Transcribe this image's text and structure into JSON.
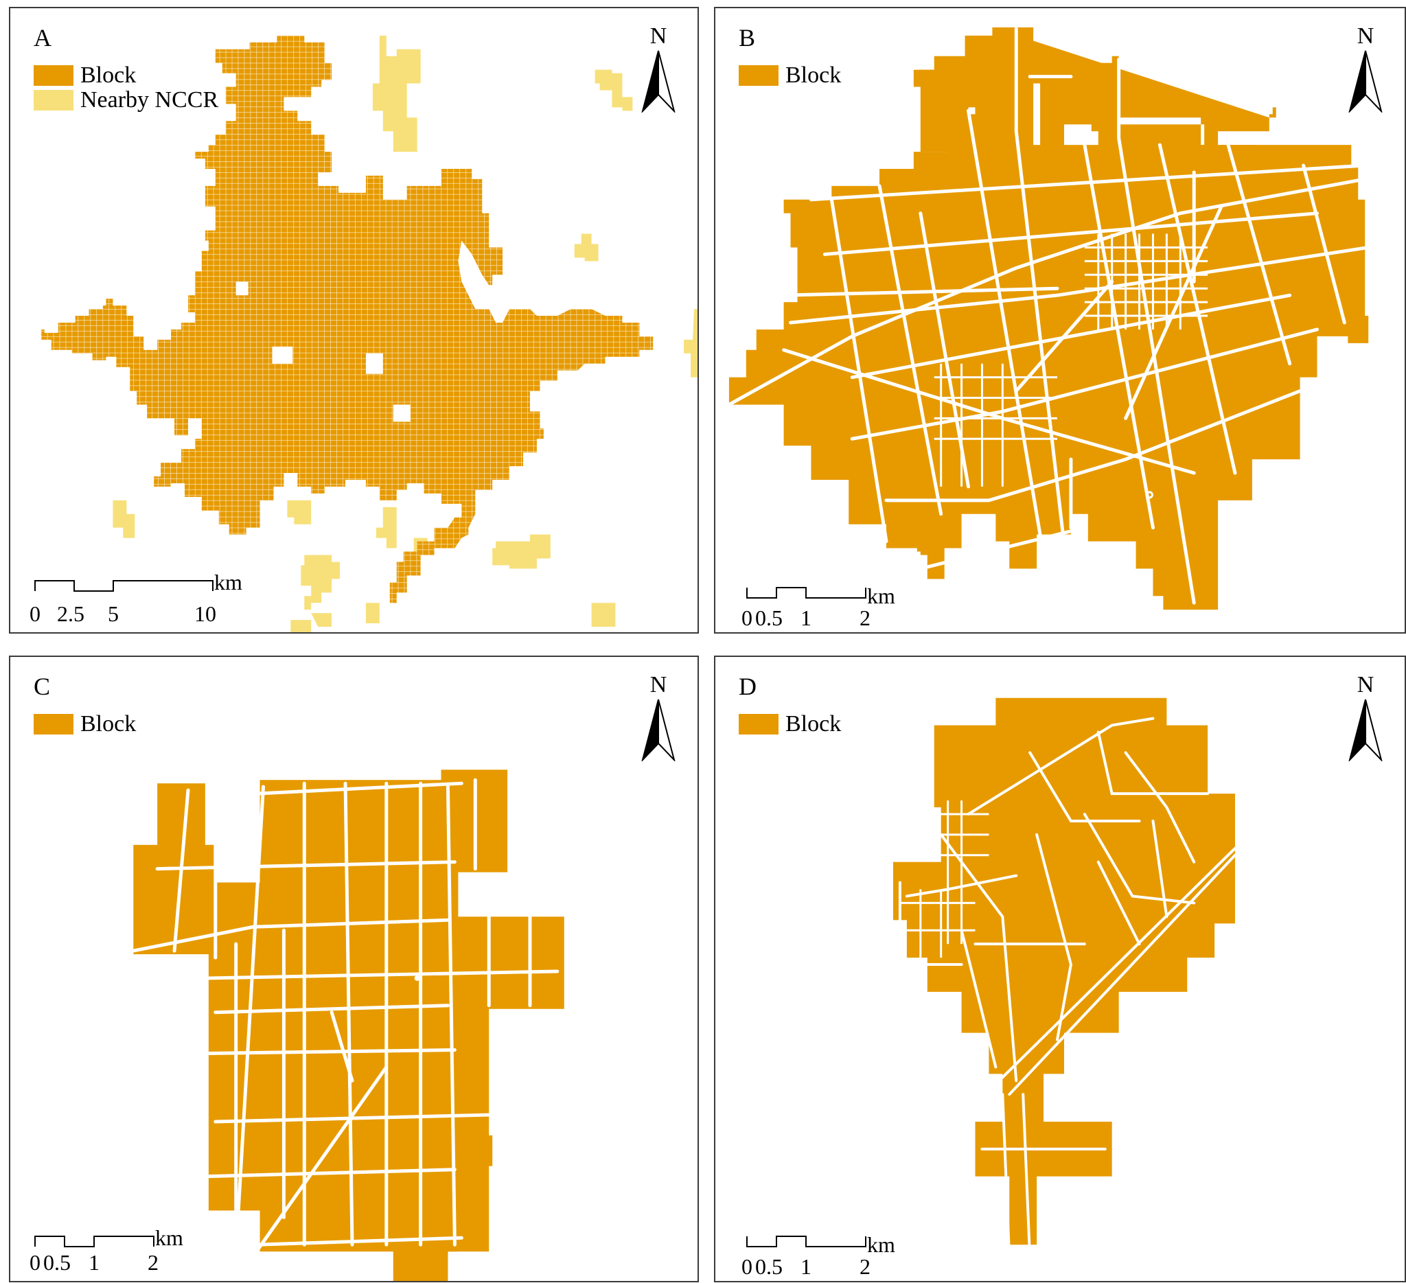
{
  "colors": {
    "block": "#E69A00",
    "nearby_nccr": "#F7E07A",
    "road": "#ffffff",
    "border": "#3a3a3a"
  },
  "panels": [
    {
      "letter": "A",
      "legend": [
        {
          "label": "Block",
          "color": "#E69A00"
        },
        {
          "label": "Nearby NCCR",
          "color": "#F7E07A"
        }
      ],
      "north": "N",
      "scale": {
        "ticks": [
          "0",
          "2.5",
          "5",
          "10"
        ],
        "unit": "km"
      }
    },
    {
      "letter": "B",
      "legend": [
        {
          "label": "Block",
          "color": "#E69A00"
        }
      ],
      "north": "N",
      "scale": {
        "ticks": [
          "0",
          "0.5",
          "1",
          "2"
        ],
        "unit": "km"
      }
    },
    {
      "letter": "C",
      "legend": [
        {
          "label": "Block",
          "color": "#E69A00"
        }
      ],
      "north": "N",
      "scale": {
        "ticks": [
          "0",
          "0.5",
          "1",
          "2"
        ],
        "unit": "km"
      }
    },
    {
      "letter": "D",
      "legend": [
        {
          "label": "Block",
          "color": "#E69A00"
        }
      ],
      "north": "N",
      "scale": {
        "ticks": [
          "0",
          "0.5",
          "1",
          "2"
        ],
        "unit": "km"
      }
    }
  ]
}
